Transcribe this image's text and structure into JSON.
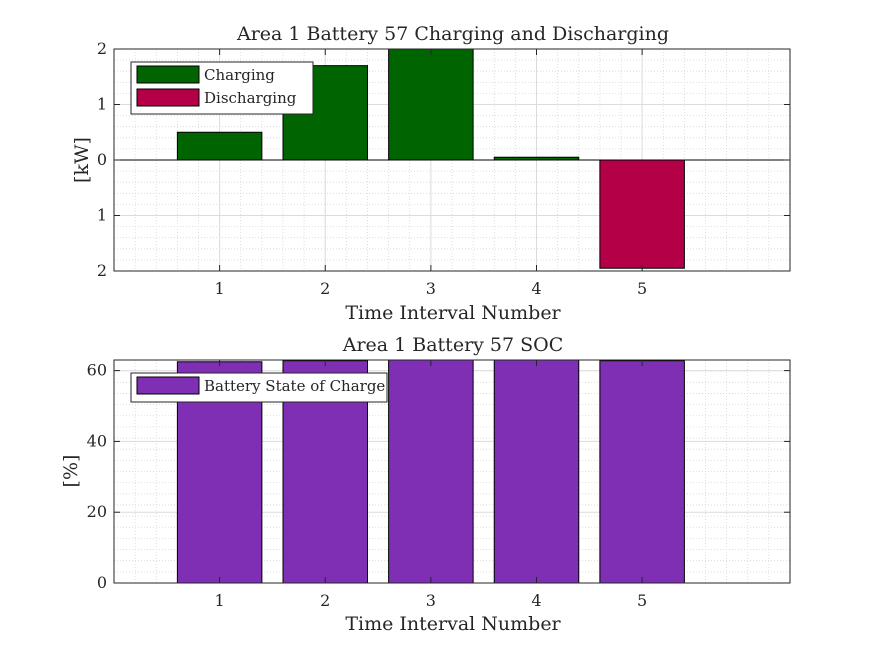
{
  "chart_data": [
    {
      "type": "bar",
      "title": "Area 1 Battery 57 Charging and Discharging",
      "xlabel": "Time Interval Number",
      "ylabel": "[kW]",
      "categories": [
        "1",
        "2",
        "3",
        "4",
        "5"
      ],
      "xlim": [
        0,
        6.4
      ],
      "ylim": [
        -2,
        2
      ],
      "yticks": [
        -2,
        -1,
        0,
        1,
        2
      ],
      "ytick_labels": [
        "2",
        "1",
        "0",
        "1",
        "2"
      ],
      "grid": true,
      "minor_grid": true,
      "legend_position": "top-left",
      "series": [
        {
          "name": "Charging",
          "color": "#006400",
          "values": [
            0.5,
            1.7,
            2.0,
            0.05,
            0
          ]
        },
        {
          "name": "Discharging",
          "color": "#b30047",
          "values": [
            0,
            0,
            0,
            0,
            -1.95
          ]
        }
      ]
    },
    {
      "type": "bar",
      "title": "Area 1 Battery 57 SOC",
      "xlabel": "Time Interval Number",
      "ylabel": "[%]",
      "categories": [
        "1",
        "2",
        "3",
        "4",
        "5"
      ],
      "xlim": [
        0,
        6.4
      ],
      "ylim": [
        0,
        63
      ],
      "yticks": [
        0,
        20,
        40,
        60
      ],
      "ytick_labels": [
        "0",
        "20",
        "40",
        "60"
      ],
      "grid": true,
      "minor_grid": true,
      "legend_position": "top-left",
      "series": [
        {
          "name": "Battery State of Charge",
          "color": "#7e2fb4",
          "values": [
            62.5,
            62.8,
            63,
            63,
            62.8
          ]
        }
      ]
    }
  ]
}
